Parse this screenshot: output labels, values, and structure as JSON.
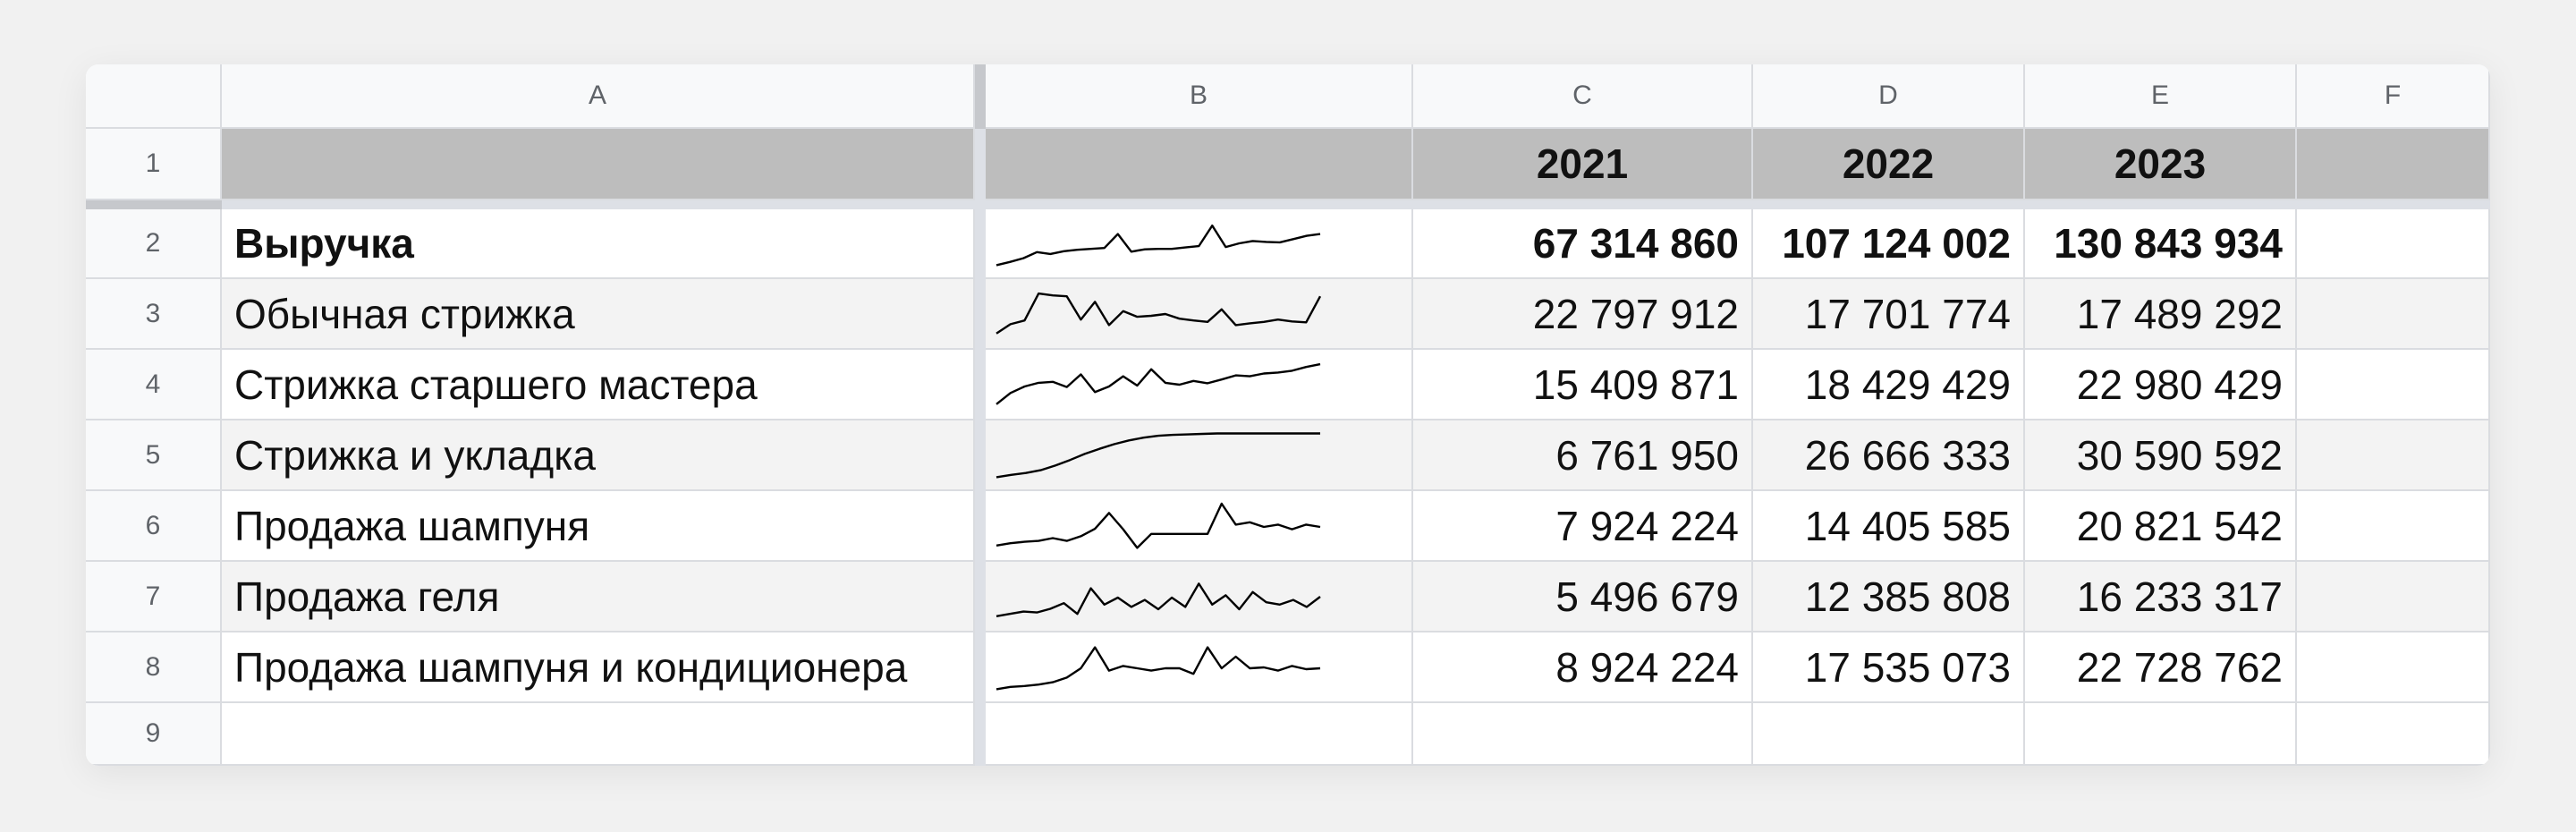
{
  "columns": [
    "A",
    "B",
    "C",
    "D",
    "E",
    "F"
  ],
  "row_numbers": [
    "1",
    "2",
    "3",
    "4",
    "5",
    "6",
    "7",
    "8",
    "9"
  ],
  "header_row": {
    "a": "",
    "b": "",
    "c": "2021",
    "d": "2022",
    "e": "2023",
    "f": ""
  },
  "rows": [
    {
      "label": "Выручка",
      "c": "67 314 860",
      "d": "107 124 002",
      "e": "130 843 934",
      "bold": true,
      "spark": [
        0.05,
        0.12,
        0.2,
        0.33,
        0.29,
        0.35,
        0.38,
        0.4,
        0.42,
        0.72,
        0.34,
        0.39,
        0.4,
        0.4,
        0.43,
        0.46,
        0.9,
        0.44,
        0.52,
        0.57,
        0.55,
        0.54,
        0.61,
        0.68,
        0.72
      ]
    },
    {
      "label": "Обычная стрижка",
      "c": "22 797 912",
      "d": "17 701 774",
      "e": "17 489 292",
      "bold": false,
      "spark": [
        0.1,
        0.3,
        0.38,
        0.96,
        0.92,
        0.9,
        0.4,
        0.78,
        0.28,
        0.58,
        0.46,
        0.48,
        0.52,
        0.42,
        0.38,
        0.35,
        0.62,
        0.28,
        0.32,
        0.35,
        0.4,
        0.36,
        0.34,
        0.9
      ]
    },
    {
      "label": "Стрижка старшего мастера",
      "c": "15 409 871",
      "d": "18 429 429",
      "e": "22 980 429",
      "bold": false,
      "spark": [
        0.1,
        0.34,
        0.48,
        0.56,
        0.58,
        0.47,
        0.74,
        0.36,
        0.48,
        0.7,
        0.5,
        0.85,
        0.56,
        0.52,
        0.6,
        0.55,
        0.63,
        0.72,
        0.7,
        0.76,
        0.78,
        0.82,
        0.9,
        0.96
      ]
    },
    {
      "label": "Стрижка и укладка",
      "c": "6 761 950",
      "d": "26 666 333",
      "e": "30 590 592",
      "bold": false,
      "spark": [
        0.05,
        0.1,
        0.14,
        0.2,
        0.3,
        0.42,
        0.55,
        0.66,
        0.76,
        0.84,
        0.9,
        0.94,
        0.96,
        0.97,
        0.98,
        0.99,
        0.99,
        0.99,
        0.99,
        0.99,
        0.99,
        0.99,
        0.99
      ]
    },
    {
      "label": "Продажа шампуня",
      "c": "7 924 224",
      "d": "14 405 585",
      "e": "20 821 542",
      "bold": false,
      "spark": [
        0.1,
        0.15,
        0.18,
        0.2,
        0.26,
        0.2,
        0.3,
        0.46,
        0.8,
        0.45,
        0.05,
        0.35,
        0.35,
        0.35,
        0.35,
        0.35,
        1.0,
        0.55,
        0.6,
        0.5,
        0.55,
        0.45,
        0.55,
        0.5
      ]
    },
    {
      "label": "Продажа геля",
      "c": "5 496 679",
      "d": "12 385 808",
      "e": "16 233 317",
      "bold": false,
      "spark": [
        0.1,
        0.15,
        0.2,
        0.18,
        0.26,
        0.38,
        0.15,
        0.7,
        0.35,
        0.5,
        0.3,
        0.45,
        0.25,
        0.5,
        0.3,
        0.8,
        0.35,
        0.55,
        0.25,
        0.62,
        0.4,
        0.35,
        0.45,
        0.3,
        0.52
      ]
    },
    {
      "label": "Продажа шампуня и кондиционера",
      "c": "8 924 224",
      "d": "17 535 073",
      "e": "22 728 762",
      "bold": false,
      "spark": [
        0.05,
        0.1,
        0.12,
        0.15,
        0.2,
        0.3,
        0.5,
        0.95,
        0.45,
        0.55,
        0.5,
        0.45,
        0.5,
        0.5,
        0.38,
        0.95,
        0.5,
        0.75,
        0.5,
        0.52,
        0.45,
        0.55,
        0.48,
        0.5
      ]
    }
  ]
}
